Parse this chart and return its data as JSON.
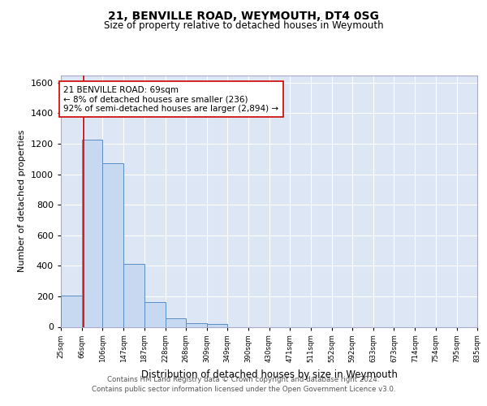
{
  "title1": "21, BENVILLE ROAD, WEYMOUTH, DT4 0SG",
  "title2": "Size of property relative to detached houses in Weymouth",
  "xlabel": "Distribution of detached houses by size in Weymouth",
  "ylabel": "Number of detached properties",
  "bin_labels": [
    "25sqm",
    "66sqm",
    "106sqm",
    "147sqm",
    "187sqm",
    "228sqm",
    "268sqm",
    "309sqm",
    "349sqm",
    "390sqm",
    "430sqm",
    "471sqm",
    "511sqm",
    "552sqm",
    "592sqm",
    "633sqm",
    "673sqm",
    "714sqm",
    "754sqm",
    "795sqm",
    "835sqm"
  ],
  "bin_edges": [
    25,
    66,
    106,
    147,
    187,
    228,
    268,
    309,
    349,
    390,
    430,
    471,
    511,
    552,
    592,
    633,
    673,
    714,
    754,
    795,
    835
  ],
  "bar_heights": [
    205,
    1225,
    1075,
    410,
    160,
    55,
    25,
    20,
    0,
    0,
    0,
    0,
    0,
    0,
    0,
    0,
    0,
    0,
    0,
    0
  ],
  "bar_color": "#c6d9f0",
  "bar_edge_color": "#5b8ec4",
  "property_value": 69,
  "red_line_color": "#cc0000",
  "annotation_line1": "21 BENVILLE ROAD: 69sqm",
  "annotation_line2": "← 8% of detached houses are smaller (236)",
  "annotation_line3": "92% of semi-detached houses are larger (2,894) →",
  "annotation_box_color": "#ffffff",
  "annotation_box_edge": "#cc0000",
  "ylim": [
    0,
    1650
  ],
  "yticks": [
    0,
    200,
    400,
    600,
    800,
    1000,
    1200,
    1400,
    1600
  ],
  "plot_background": "#dde6f5",
  "footer_line1": "Contains HM Land Registry data © Crown copyright and database right 2024.",
  "footer_line2": "Contains public sector information licensed under the Open Government Licence v3.0."
}
